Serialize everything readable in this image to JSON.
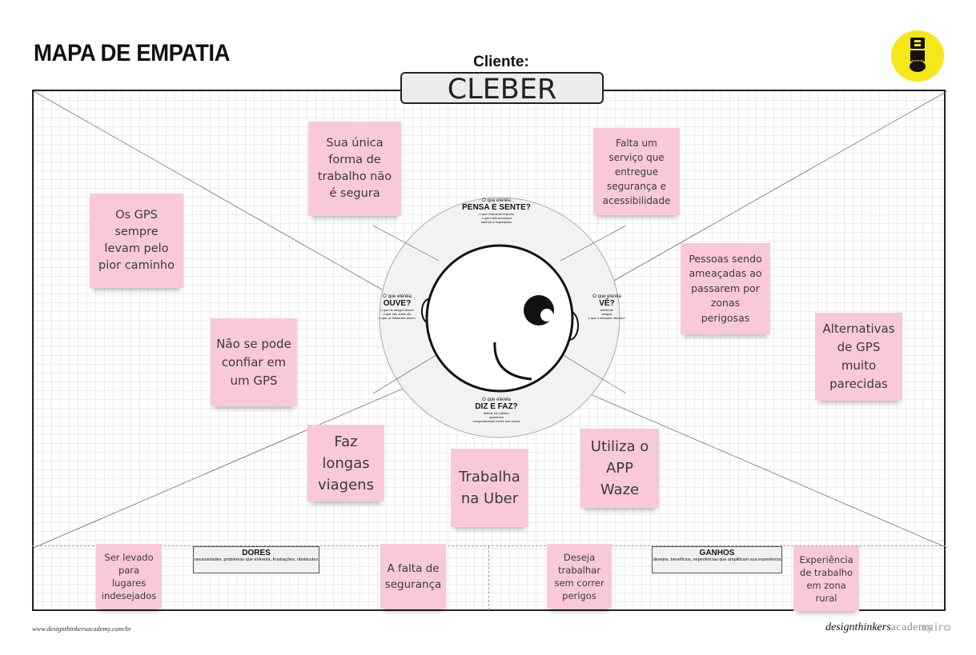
{
  "header": {
    "title": "MAPA DE EMPATIA",
    "client_label": "Cliente:",
    "client_name": "CLEBER",
    "logo_icon": "design-thinkers-logo-icon",
    "logo_text": "academy"
  },
  "circle": {
    "top": {
      "question": "O que ele/ela",
      "heading": "PENSA E SENTE?",
      "sub": [
        "o que realmente importa",
        "o que mais preocupa",
        "sonhos & inspirações"
      ]
    },
    "left": {
      "question": "O que ele/ela",
      "heading": "OUVE?",
      "sub": [
        "o que os amigos dizem",
        "o que seu chefe diz",
        "o que os influentes dizem"
      ]
    },
    "right": {
      "question": "O que ele/ela",
      "heading": "VÊ?",
      "sub": [
        "ambiente",
        "amigos",
        "o que o mercado oferece?"
      ]
    },
    "bottom": {
      "question": "O que ele/ela",
      "heading": "DIZ E FAZ?",
      "sub": [
        "atitude em público",
        "aparência",
        "comportamento frente aos outros"
      ]
    }
  },
  "stickies": {
    "s1": "Sua única forma de trabalho não é segura",
    "s2": "Falta um serviço que entregue segurança e acessibilidade",
    "s3": "Os GPS sempre levam pelo pior caminho",
    "s4": "Pessoas sendo ameaçadas ao passarem por zonas perigosas",
    "s5": "Não se pode confiar em um GPS",
    "s6": "Alternativas de GPS muito parecidas",
    "s7": "Faz longas viagens",
    "s8": "Trabalha na Uber",
    "s9": "Utiliza o APP Waze",
    "s10": "Ser levado para lugares indesejados",
    "s11": "A falta de segurança",
    "s12": "Deseja trabalhar sem correr perigos",
    "s13": "Experiência de trabalho em zona rural"
  },
  "dores": {
    "heading": "DORES",
    "sub": "necessidades, problemas que enfrenta, frustrações, obstáculos"
  },
  "ganhos": {
    "heading": "GANHOS",
    "sub": "desejos, benefícios, experiências que amplificam sua experiência"
  },
  "footer": {
    "url": "www.designthinkersacademy.com/br",
    "brand_a": "designthinkers",
    "brand_b": "academy",
    "miro": "miro"
  },
  "colors": {
    "sticky": "#f9c9d9",
    "logo": "#f5e71a",
    "circle": "#f2f2f2"
  }
}
